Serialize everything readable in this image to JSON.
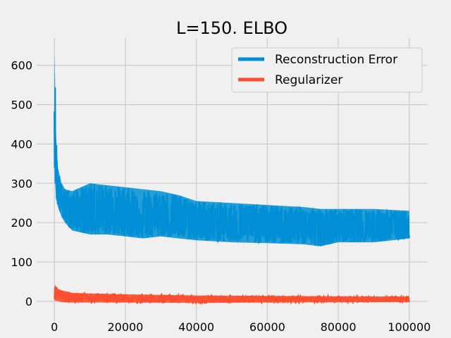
{
  "chart_data": {
    "type": "line",
    "title": "L=150. ELBO",
    "xlabel": "iterations",
    "ylabel": "",
    "xlim": [
      -5000,
      105000
    ],
    "ylim": [
      -18,
      655
    ],
    "xticks": [
      0,
      20000,
      40000,
      60000,
      80000,
      100000
    ],
    "yticks": [
      0,
      100,
      200,
      300,
      400,
      500,
      600
    ],
    "grid": true,
    "legend_position": "top-right",
    "series": [
      {
        "name": "Reconstruction Error",
        "color": "#008fd5",
        "envelope": {
          "x": [
            0,
            200,
            500,
            1000,
            2000,
            3000,
            5000,
            10000,
            15000,
            20000,
            25000,
            30000,
            35000,
            40000,
            50000,
            60000,
            70000,
            75000,
            80000,
            90000,
            100000
          ],
          "upper": [
            630,
            560,
            420,
            340,
            300,
            285,
            280,
            300,
            295,
            290,
            285,
            280,
            270,
            255,
            250,
            245,
            240,
            235,
            235,
            235,
            230
          ],
          "lower": [
            360,
            300,
            260,
            240,
            215,
            200,
            180,
            170,
            170,
            165,
            160,
            165,
            160,
            155,
            150,
            148,
            145,
            140,
            150,
            150,
            160
          ],
          "center": [
            600,
            420,
            330,
            280,
            250,
            240,
            230,
            225,
            220,
            215,
            212,
            210,
            208,
            200,
            195,
            190,
            188,
            186,
            185,
            184,
            183
          ]
        }
      },
      {
        "name": "Regularizer",
        "color": "#fc4f30",
        "envelope": {
          "x": [
            0,
            500,
            1000,
            2000,
            5000,
            10000,
            20000,
            40000,
            60000,
            80000,
            100000
          ],
          "upper": [
            35,
            38,
            32,
            28,
            22,
            20,
            18,
            15,
            14,
            13,
            12
          ],
          "lower": [
            2,
            1,
            0,
            -2,
            -3,
            -3,
            -3,
            -4,
            -3,
            -2,
            -2
          ],
          "center": [
            20,
            25,
            18,
            14,
            10,
            9,
            8,
            6,
            5,
            5,
            5
          ]
        }
      }
    ]
  }
}
